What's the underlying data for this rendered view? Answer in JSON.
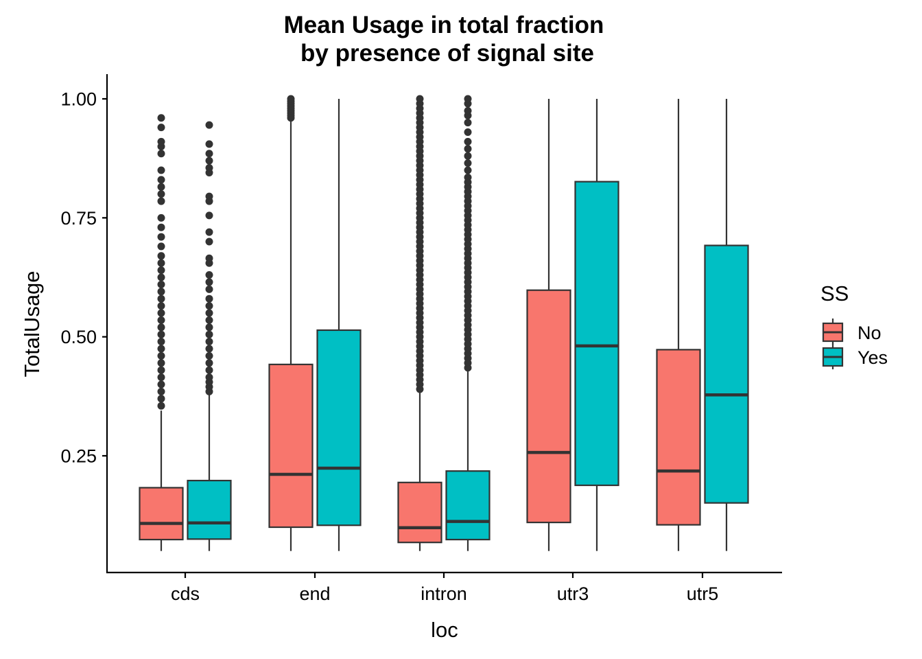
{
  "colors": {
    "No": "#F8766D",
    "Yes": "#00BFC4",
    "line": "#333333",
    "axis": "#000000"
  },
  "chart_data": {
    "type": "boxplot",
    "title_line1": "Mean Usage in total fraction",
    "title_line2": "by presence of signal site",
    "xlabel": "loc",
    "ylabel": "TotalUsage",
    "categories": [
      "cds",
      "end",
      "intron",
      "utr3",
      "utr5"
    ],
    "ylim": [
      0.035,
      1.05
    ],
    "yticks": [
      0.25,
      0.5,
      0.75,
      1.0
    ],
    "ytick_labels": [
      "0.25",
      "0.50",
      "0.75",
      "1.00"
    ],
    "grid": false,
    "legend": {
      "title": "SS",
      "placement": "right",
      "entries": [
        "No",
        "Yes"
      ]
    },
    "series": [
      {
        "name": "No",
        "boxes": [
          {
            "category": "cds",
            "whisker_low": 0.05,
            "q1": 0.074,
            "median": 0.108,
            "q3": 0.183,
            "whisker_high": 0.345,
            "outliers": [
              0.355,
              0.37,
              0.385,
              0.4,
              0.415,
              0.43,
              0.445,
              0.46,
              0.475,
              0.49,
              0.505,
              0.52,
              0.535,
              0.55,
              0.565,
              0.58,
              0.595,
              0.61,
              0.625,
              0.64,
              0.655,
              0.67,
              0.69,
              0.71,
              0.73,
              0.75,
              0.785,
              0.8,
              0.815,
              0.83,
              0.85,
              0.885,
              0.9,
              0.91,
              0.94,
              0.96
            ]
          },
          {
            "category": "end",
            "whisker_low": 0.05,
            "q1": 0.1,
            "median": 0.211,
            "q3": 0.442,
            "whisker_high": 0.955,
            "outliers": [
              0.96,
              0.965,
              0.97,
              0.975,
              0.98,
              0.985,
              0.99,
              0.995,
              1.0
            ]
          },
          {
            "category": "intron",
            "whisker_low": 0.05,
            "q1": 0.068,
            "median": 0.099,
            "q3": 0.194,
            "whisker_high": 0.385,
            "outliers": [
              0.39,
              0.4,
              0.41,
              0.42,
              0.43,
              0.44,
              0.45,
              0.46,
              0.47,
              0.48,
              0.49,
              0.5,
              0.51,
              0.52,
              0.53,
              0.54,
              0.55,
              0.56,
              0.57,
              0.58,
              0.59,
              0.6,
              0.61,
              0.62,
              0.63,
              0.64,
              0.65,
              0.66,
              0.67,
              0.68,
              0.69,
              0.7,
              0.71,
              0.72,
              0.73,
              0.74,
              0.75,
              0.76,
              0.77,
              0.78,
              0.79,
              0.8,
              0.81,
              0.82,
              0.83,
              0.84,
              0.85,
              0.86,
              0.87,
              0.88,
              0.89,
              0.9,
              0.91,
              0.92,
              0.93,
              0.94,
              0.95,
              0.96,
              0.97,
              0.98,
              0.99,
              1.0
            ]
          },
          {
            "category": "utr3",
            "whisker_low": 0.05,
            "q1": 0.11,
            "median": 0.257,
            "q3": 0.598,
            "whisker_high": 1.0,
            "outliers": []
          },
          {
            "category": "utr5",
            "whisker_low": 0.05,
            "q1": 0.105,
            "median": 0.218,
            "q3": 0.473,
            "whisker_high": 1.0,
            "outliers": []
          }
        ]
      },
      {
        "name": "Yes",
        "boxes": [
          {
            "category": "cds",
            "whisker_low": 0.05,
            "q1": 0.075,
            "median": 0.109,
            "q3": 0.198,
            "whisker_high": 0.38,
            "outliers": [
              0.385,
              0.395,
              0.405,
              0.415,
              0.43,
              0.445,
              0.46,
              0.475,
              0.49,
              0.505,
              0.52,
              0.535,
              0.55,
              0.565,
              0.58,
              0.6,
              0.615,
              0.63,
              0.655,
              0.665,
              0.7,
              0.72,
              0.755,
              0.785,
              0.795,
              0.845,
              0.855,
              0.87,
              0.885,
              0.905,
              0.945
            ]
          },
          {
            "category": "end",
            "whisker_low": 0.05,
            "q1": 0.104,
            "median": 0.224,
            "q3": 0.514,
            "whisker_high": 1.0,
            "outliers": []
          },
          {
            "category": "intron",
            "whisker_low": 0.05,
            "q1": 0.074,
            "median": 0.112,
            "q3": 0.218,
            "whisker_high": 0.43,
            "outliers": [
              0.435,
              0.445,
              0.455,
              0.465,
              0.475,
              0.485,
              0.495,
              0.505,
              0.515,
              0.525,
              0.535,
              0.545,
              0.555,
              0.565,
              0.575,
              0.585,
              0.595,
              0.605,
              0.615,
              0.625,
              0.635,
              0.645,
              0.655,
              0.665,
              0.675,
              0.685,
              0.695,
              0.705,
              0.715,
              0.725,
              0.735,
              0.745,
              0.755,
              0.765,
              0.775,
              0.785,
              0.795,
              0.805,
              0.815,
              0.825,
              0.835,
              0.85,
              0.865,
              0.88,
              0.895,
              0.91,
              0.93,
              0.95,
              0.965,
              0.975,
              0.99,
              1.0
            ]
          },
          {
            "category": "utr3",
            "whisker_low": 0.05,
            "q1": 0.188,
            "median": 0.481,
            "q3": 0.826,
            "whisker_high": 1.0,
            "outliers": []
          },
          {
            "category": "utr5",
            "whisker_low": 0.05,
            "q1": 0.151,
            "median": 0.378,
            "q3": 0.692,
            "whisker_high": 1.0,
            "outliers": []
          }
        ]
      }
    ]
  }
}
